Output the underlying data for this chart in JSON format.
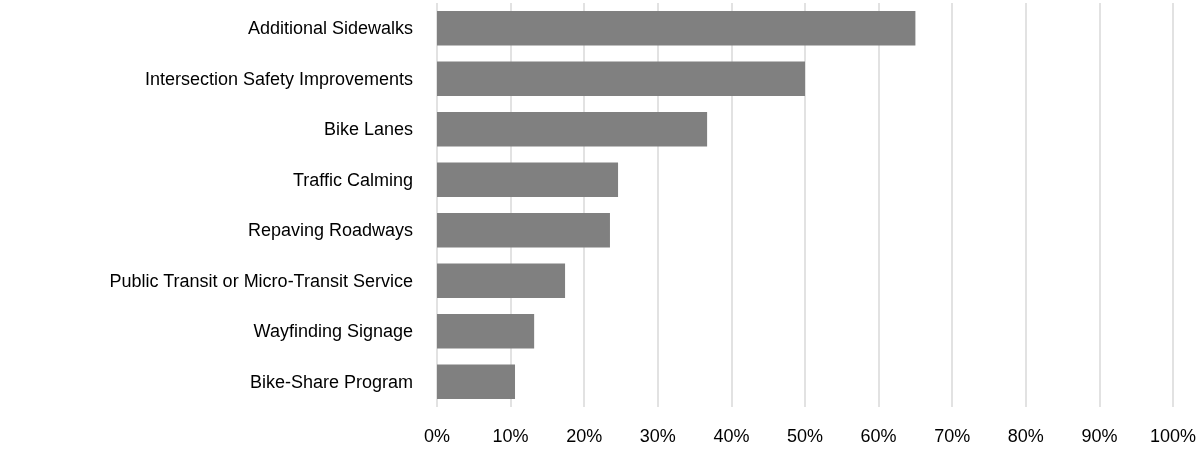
{
  "chart_data": {
    "type": "bar",
    "orientation": "horizontal",
    "categories": [
      "Additional Sidewalks",
      "Intersection Safety Improvements",
      "Bike Lanes",
      "Traffic Calming",
      "Repaving Roadways",
      "Public Transit or Micro-Transit Service",
      "Wayfinding Signage",
      "Bike-Share Program"
    ],
    "values": [
      65,
      50,
      36.7,
      24.6,
      23.5,
      17.4,
      13.2,
      10.6
    ],
    "color": "#808080",
    "xlim": [
      0,
      100
    ],
    "xticks": [
      {
        "value": 0,
        "label": "0%"
      },
      {
        "value": 10,
        "label": "10%"
      },
      {
        "value": 20,
        "label": "20%"
      },
      {
        "value": 30,
        "label": "30%"
      },
      {
        "value": 40,
        "label": "40%"
      },
      {
        "value": 50,
        "label": "50%"
      },
      {
        "value": 60,
        "label": "60%"
      },
      {
        "value": 70,
        "label": "70%"
      },
      {
        "value": 80,
        "label": "80%"
      },
      {
        "value": 90,
        "label": "90%"
      },
      {
        "value": 100,
        "label": "100%"
      }
    ],
    "grid": "x"
  }
}
